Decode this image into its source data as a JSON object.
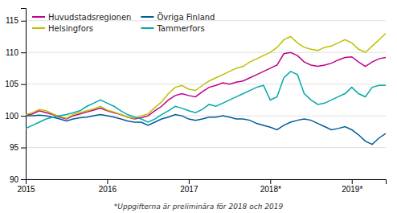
{
  "chart_data": {
    "type": "line",
    "categories": [
      "2015",
      null,
      null,
      null,
      null,
      null,
      null,
      null,
      null,
      null,
      null,
      null,
      "2016",
      null,
      null,
      null,
      null,
      null,
      null,
      null,
      null,
      null,
      null,
      null,
      "2017",
      null,
      null,
      null,
      null,
      null,
      null,
      null,
      null,
      null,
      null,
      null,
      "2018*",
      null,
      null,
      null,
      null,
      null,
      null,
      null,
      null,
      null,
      null,
      null,
      "2019*",
      null,
      null,
      null,
      null,
      null
    ],
    "series": [
      {
        "name": "Huvudstadsregionen",
        "color": "#C0008B",
        "values": [
          100.1,
          100.3,
          100.8,
          100.5,
          100.2,
          99.8,
          99.5,
          100.0,
          100.3,
          100.6,
          100.9,
          101.2,
          100.8,
          100.5,
          100.2,
          99.8,
          99.5,
          99.7,
          100.0,
          100.8,
          101.5,
          102.5,
          103.2,
          103.5,
          103.2,
          103.0,
          103.8,
          104.5,
          104.8,
          105.2,
          105.0,
          105.3,
          105.5,
          106.0,
          106.5,
          107.0,
          107.5,
          108.0,
          109.8,
          110.0,
          109.5,
          108.5,
          108.0,
          107.8,
          108.0,
          108.3,
          108.8,
          109.2,
          109.3,
          108.5,
          107.8,
          108.5,
          109.0,
          109.2
        ]
      },
      {
        "name": "Helsingfors",
        "color": "#BFBF00",
        "values": [
          100.2,
          100.5,
          101.0,
          100.8,
          100.3,
          99.9,
          99.6,
          100.2,
          100.5,
          100.8,
          101.1,
          101.5,
          100.9,
          100.6,
          100.2,
          99.8,
          99.6,
          100.0,
          100.3,
          101.3,
          102.2,
          103.5,
          104.5,
          104.8,
          104.2,
          104.0,
          104.8,
          105.5,
          106.0,
          106.5,
          107.0,
          107.5,
          107.8,
          108.5,
          109.0,
          109.5,
          110.0,
          110.8,
          112.0,
          112.5,
          111.5,
          110.8,
          110.5,
          110.3,
          110.8,
          111.0,
          111.5,
          112.0,
          111.5,
          110.5,
          110.0,
          111.0,
          112.0,
          113.0
        ]
      },
      {
        "name": "Övriga Finland",
        "color": "#005B9A",
        "values": [
          100.0,
          100.0,
          100.1,
          100.0,
          99.8,
          99.5,
          99.2,
          99.5,
          99.7,
          99.8,
          100.0,
          100.2,
          100.0,
          99.8,
          99.5,
          99.2,
          99.0,
          99.0,
          98.5,
          99.0,
          99.5,
          99.8,
          100.2,
          100.0,
          99.5,
          99.3,
          99.5,
          99.8,
          99.8,
          100.0,
          99.8,
          99.5,
          99.5,
          99.3,
          98.8,
          98.5,
          98.2,
          97.8,
          98.5,
          99.0,
          99.3,
          99.5,
          99.3,
          98.8,
          98.3,
          97.8,
          98.0,
          98.3,
          97.8,
          97.0,
          96.0,
          95.5,
          96.5,
          97.2
        ]
      },
      {
        "name": "Tammerfors",
        "color": "#00AAAA",
        "values": [
          98.0,
          98.5,
          99.0,
          99.5,
          99.8,
          100.0,
          100.2,
          100.5,
          100.8,
          101.5,
          102.0,
          102.5,
          102.0,
          101.5,
          100.8,
          100.2,
          99.8,
          99.5,
          99.0,
          99.5,
          100.2,
          100.8,
          101.5,
          101.2,
          100.8,
          100.5,
          101.0,
          101.8,
          101.5,
          102.0,
          102.5,
          103.0,
          103.5,
          104.0,
          104.5,
          104.8,
          102.5,
          103.0,
          106.0,
          107.0,
          106.5,
          103.5,
          102.5,
          101.8,
          102.0,
          102.5,
          103.0,
          103.5,
          104.5,
          103.5,
          103.0,
          104.5,
          104.8,
          104.8
        ]
      }
    ],
    "ylim": [
      90,
      117
    ],
    "yticks": [
      90,
      95,
      100,
      105,
      110,
      115
    ],
    "grid": true,
    "legend": "upper left",
    "annotations": [
      "*Uppgifterna är preliminära för 2018 och 2019"
    ]
  }
}
